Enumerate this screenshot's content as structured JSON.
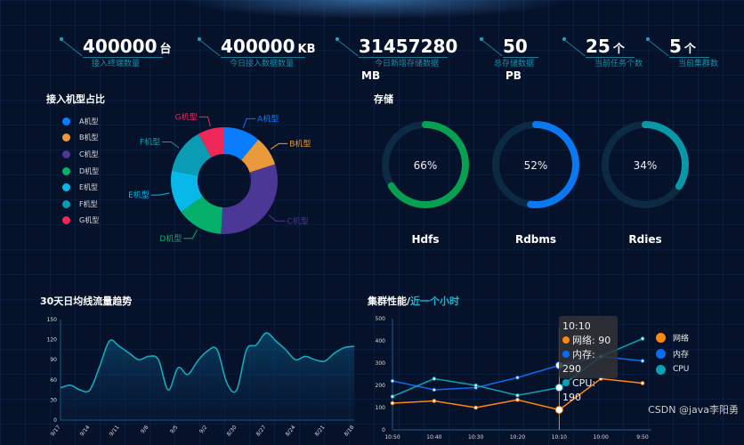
{
  "stats": [
    {
      "value": "400000",
      "unit": "台",
      "label": "接入终端数量"
    },
    {
      "value": "400000",
      "unit": "KB",
      "label": "今日接入数据数量"
    },
    {
      "value": "31457280",
      "unit": "MB",
      "label": "今日新增存储数据"
    },
    {
      "value": "50",
      "unit": "PB",
      "label": "总存储数据"
    },
    {
      "value": "25",
      "unit": "个",
      "label": "当前任务个数"
    },
    {
      "value": "5",
      "unit": "个",
      "label": "当前集群数"
    }
  ],
  "donut": {
    "title": "接入机型占比",
    "chart_data": {
      "type": "pie",
      "inner_radius_ratio": 0.5,
      "categories": [
        "A机型",
        "B机型",
        "C机型",
        "D机型",
        "E机型",
        "F机型",
        "G机型"
      ],
      "values": [
        11,
        9,
        31,
        14,
        13,
        14,
        8
      ],
      "colors": [
        "#0a7cff",
        "#ea9a3a",
        "#4a3796",
        "#05b06a",
        "#07b8e8",
        "#0a9cb4",
        "#f0285a"
      ]
    }
  },
  "storage": {
    "title": "存储",
    "gauges": [
      {
        "name": "Hdfs",
        "percent": 66,
        "label": "66%",
        "color": "#06a050"
      },
      {
        "name": "Rdbms",
        "percent": 52,
        "label": "52%",
        "color": "#0a78f0"
      },
      {
        "name": "Rdies",
        "percent": 34,
        "label": "34%",
        "color": "#0a98a8"
      }
    ]
  },
  "trend": {
    "title": "30天日均线流量趋势",
    "chart_data": {
      "type": "area",
      "smooth": true,
      "color": "#18a8b8",
      "ylim": [
        0,
        150
      ],
      "yticks": [
        0,
        30,
        60,
        90,
        120,
        150
      ],
      "xticks": [
        "9/17",
        "9/14",
        "9/11",
        "9/8",
        "9/5",
        "9/2",
        "8/30",
        "8/27",
        "8/24",
        "8/21",
        "8/18"
      ],
      "values": [
        48,
        52,
        45,
        45,
        80,
        118,
        110,
        100,
        90,
        95,
        90,
        45,
        78,
        68,
        88,
        103,
        105,
        55,
        45,
        105,
        112,
        130,
        118,
        105,
        90,
        95,
        90,
        88,
        100,
        108,
        110
      ]
    }
  },
  "cluster": {
    "title": "集群性能/",
    "title_accent": "近一个小时",
    "chart_data": {
      "type": "line",
      "categories": [
        "10:50",
        "10:40",
        "10:30",
        "10:20",
        "10:10",
        "10:00",
        "9:50"
      ],
      "ylim": [
        0,
        500
      ],
      "yticks": [
        0,
        100,
        200,
        300,
        400,
        500
      ],
      "series": [
        {
          "name": "网络",
          "color": "#ff8a0a",
          "values": [
            120,
            130,
            100,
            135,
            90,
            230,
            210
          ]
        },
        {
          "name": "内存",
          "color": "#0a6cf0",
          "values": [
            220,
            180,
            190,
            235,
            290,
            330,
            310
          ]
        },
        {
          "name": "CPU",
          "color": "#0aa0b4",
          "values": [
            150,
            230,
            200,
            155,
            190,
            330,
            410
          ]
        }
      ],
      "tooltip": {
        "title": "10:10",
        "rows": [
          "网络: 90",
          "内存: 290",
          "CPU: 190"
        ]
      }
    }
  },
  "watermark": "CSDN @java李阳勇"
}
